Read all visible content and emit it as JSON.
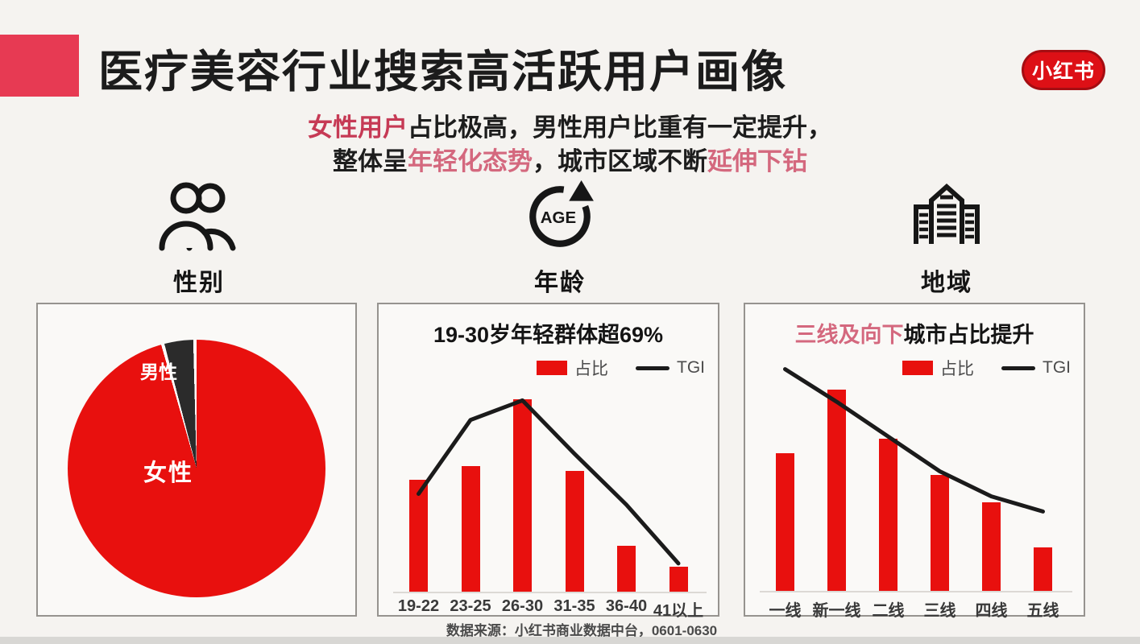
{
  "page": {
    "title": "医疗美容行业搜索高活跃用户画像",
    "logo_text": "小红书",
    "source_note": "数据来源：小红书商业数据中台，0601-0630"
  },
  "colors": {
    "accent": "#e73a53",
    "brand_red": "#dd1016",
    "bar_red": "#e8100e",
    "highlight_red": "#c63a55",
    "highlight_soft": "#d4687e"
  },
  "subtitle": {
    "line1_red": "女性用户",
    "line1_black": "占比极高，男性用户比重有一定提升，",
    "line2_black1": "整体呈",
    "line2_red1": "年轻化态势",
    "line2_black2": "，城市区域不断",
    "line2_red2": "延伸下钻"
  },
  "sections": [
    {
      "label": "性别",
      "icon": "people-icon"
    },
    {
      "label": "年龄",
      "icon": "age-cycle-icon",
      "icon_text": "AGE"
    },
    {
      "label": "地域",
      "icon": "buildings-icon"
    }
  ],
  "chart_data": [
    {
      "id": "gender-pie",
      "type": "pie",
      "title": "性别",
      "slices": [
        {
          "label": "女性",
          "value": 96.4,
          "color": "#e8100e"
        },
        {
          "label": "男性",
          "value": 3.6,
          "color": "#2b2b2b"
        }
      ],
      "slice_gap_deg": 1.5,
      "legend_position": "none"
    },
    {
      "id": "age-chart",
      "type": "bar-line",
      "title": "19-30岁年轻群体超69%",
      "categories": [
        "19-22",
        "23-25",
        "26-30",
        "31-35",
        "36-40",
        "41以上"
      ],
      "series": [
        {
          "name": "占比",
          "type": "bar",
          "color": "#e8100e",
          "unit": "%",
          "values": [
            18,
            20.2,
            31,
            19.5,
            7.4,
            4
          ],
          "ylim": [
            0,
            35
          ]
        },
        {
          "name": "TGI",
          "type": "line",
          "color": "#1b1b1b",
          "values": [
            90,
            158,
            176,
            127,
            80,
            26
          ],
          "ylim": [
            0,
            200
          ]
        }
      ],
      "legend": [
        "占比",
        "TGI"
      ],
      "legend_position": "top-right",
      "grid": false
    },
    {
      "id": "region-chart",
      "type": "bar-line",
      "title_highlight": "三线及向下",
      "title_rest": "城市占比提升",
      "categories": [
        "一线",
        "新一线",
        "二线",
        "三线",
        "四线",
        "五线"
      ],
      "series": [
        {
          "name": "占比",
          "type": "bar",
          "color": "#e8100e",
          "unit": "%",
          "values": [
            19,
            27.8,
            21,
            16,
            12.2,
            6
          ],
          "ylim": [
            0,
            30
          ]
        },
        {
          "name": "TGI",
          "type": "line",
          "color": "#1b1b1b",
          "values": [
            204,
            174,
            142,
            110,
            87,
            73
          ],
          "ylim": [
            0,
            200
          ]
        }
      ],
      "legend": [
        "占比",
        "TGI"
      ],
      "legend_position": "top-right",
      "grid": false
    }
  ]
}
